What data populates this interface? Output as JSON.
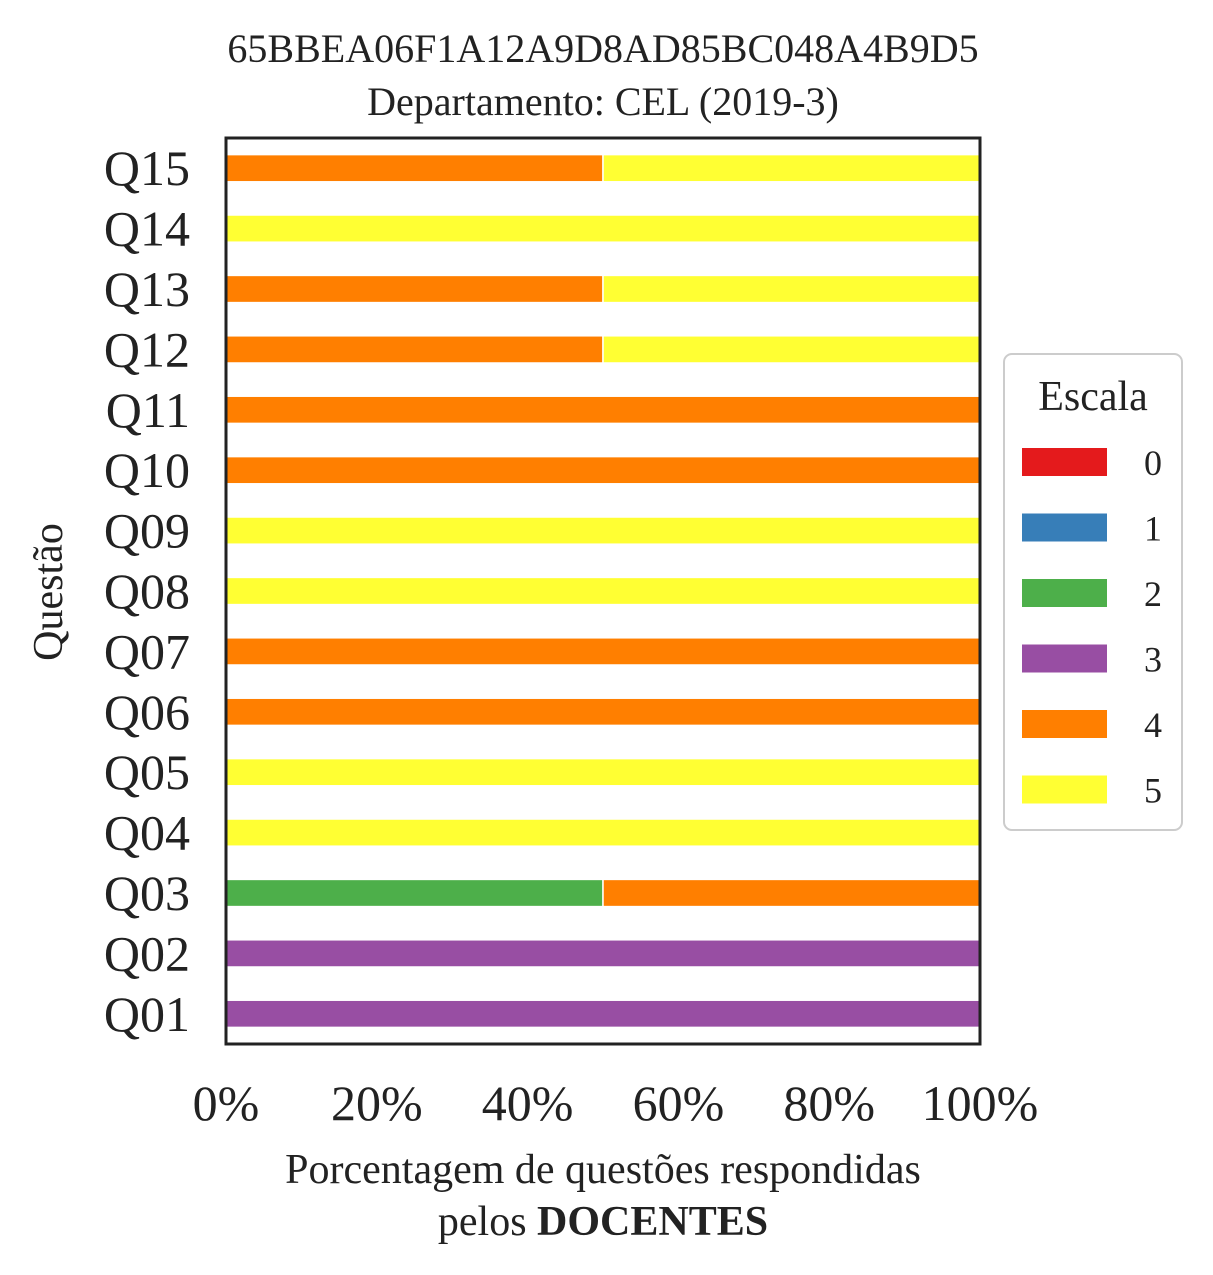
{
  "chart_data": {
    "type": "bar",
    "orientation": "horizontal",
    "stacked": true,
    "title": "65BBEA06F1A12A9D8AD85BC048A4B9D5",
    "subtitle": "Departamento: CEL (2019-3)",
    "ylabel": "Questão",
    "xlabel_line1": "Porcentagem de questões respondidas",
    "xlabel_line2_prefix": "pelos ",
    "xlabel_line2_bold": "DOCENTES",
    "xlim": [
      0,
      100
    ],
    "xticks": [
      "0%",
      "20%",
      "40%",
      "60%",
      "80%",
      "100%"
    ],
    "grid": false,
    "legend_placement": "center-right outside",
    "categories": [
      "Q01",
      "Q02",
      "Q03",
      "Q04",
      "Q05",
      "Q06",
      "Q07",
      "Q08",
      "Q09",
      "Q10",
      "Q11",
      "Q12",
      "Q13",
      "Q14",
      "Q15"
    ],
    "legend": {
      "title": "Escala",
      "labels": [
        "0",
        "1",
        "2",
        "3",
        "4",
        "5"
      ]
    },
    "series": [
      {
        "name": "0",
        "color": "#e41a1c",
        "values": [
          0,
          0,
          0,
          0,
          0,
          0,
          0,
          0,
          0,
          0,
          0,
          0,
          0,
          0,
          0
        ]
      },
      {
        "name": "1",
        "color": "#377eb8",
        "values": [
          0,
          0,
          0,
          0,
          0,
          0,
          0,
          0,
          0,
          0,
          0,
          0,
          0,
          0,
          0
        ]
      },
      {
        "name": "2",
        "color": "#4daf4a",
        "values": [
          0,
          0,
          50,
          0,
          0,
          0,
          0,
          0,
          0,
          0,
          0,
          0,
          0,
          0,
          0
        ]
      },
      {
        "name": "3",
        "color": "#984ea3",
        "values": [
          100,
          100,
          0,
          0,
          0,
          0,
          0,
          0,
          0,
          0,
          0,
          0,
          0,
          0,
          0
        ]
      },
      {
        "name": "4",
        "color": "#ff7f00",
        "values": [
          0,
          0,
          50,
          0,
          0,
          100,
          100,
          0,
          0,
          100,
          100,
          50,
          50,
          0,
          50
        ]
      },
      {
        "name": "5",
        "color": "#ffff33",
        "values": [
          0,
          0,
          0,
          100,
          100,
          0,
          0,
          100,
          100,
          0,
          0,
          50,
          50,
          100,
          50
        ]
      }
    ]
  }
}
